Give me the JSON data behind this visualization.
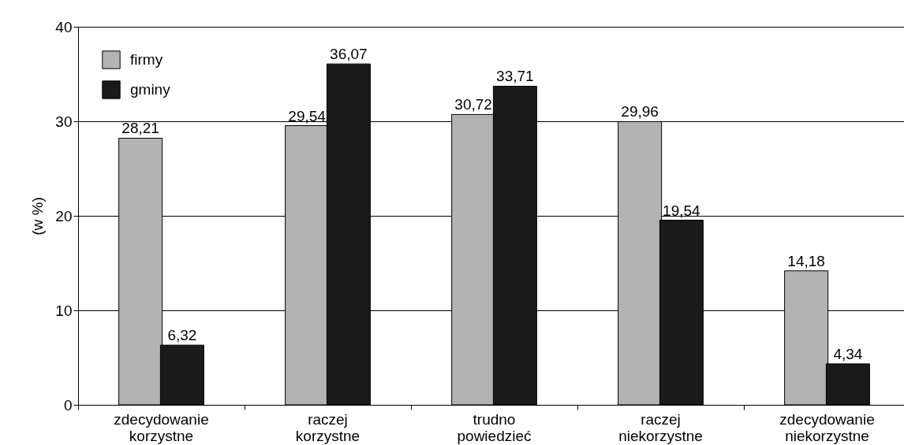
{
  "chart_data": {
    "type": "bar",
    "ylabel": "(w %)",
    "categories": [
      "zdecydowanie korzystne",
      "raczej korzystne",
      "trudno powiedzieć",
      "raczej niekorzystne",
      "zdecydowanie niekorzystne"
    ],
    "series": [
      {
        "name": "firmy",
        "color": "#b3b3b3",
        "values": [
          28.21,
          29.54,
          30.72,
          29.96,
          14.18
        ],
        "value_labels": [
          "28,21",
          "29,54",
          "30,72",
          "29,96",
          "14,18"
        ]
      },
      {
        "name": "gminy",
        "color": "#1a1a1a",
        "values": [
          6.32,
          36.07,
          33.71,
          19.54,
          4.34
        ],
        "value_labels": [
          "6,32",
          "36,07",
          "33,71",
          "19,54",
          "4,34"
        ]
      }
    ],
    "ylim": [
      0,
      40
    ],
    "yticks": [
      0,
      10,
      20,
      30,
      40
    ],
    "grid": "y",
    "legend": "top left"
  }
}
